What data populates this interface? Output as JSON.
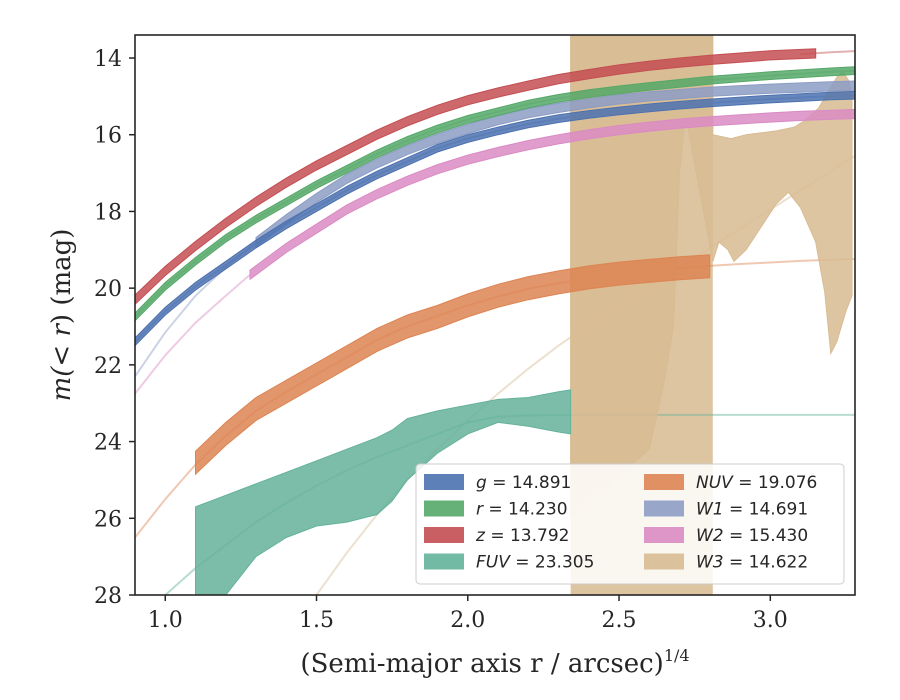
{
  "chart_data": {
    "type": "line",
    "title": "",
    "xlabel": "(Semi-major axis r / arcsec)",
    "xlabel_exponent": "1/4",
    "ylabel_pre": "m(",
    "ylabel_var": "< r",
    "ylabel_post": ") (mag)",
    "xlim": [
      0.9,
      3.28
    ],
    "ylim": [
      28,
      13.4
    ],
    "y_inverted": true,
    "grid": false,
    "legend_position": "lower-right",
    "xticks": [
      1.0,
      1.5,
      2.0,
      2.5,
      3.0
    ],
    "xtick_labels": [
      "1.0",
      "1.5",
      "2.0",
      "2.5",
      "3.0"
    ],
    "yticks": [
      14,
      16,
      18,
      20,
      22,
      24,
      26,
      28
    ],
    "ytick_labels": [
      "14",
      "16",
      "18",
      "20",
      "22",
      "24",
      "26",
      "28"
    ],
    "series": [
      {
        "id": "g",
        "legend_label": "g = 14.891",
        "color": "#4c72b0",
        "band": {
          "x": [
            0.9,
            1.0,
            1.1,
            1.2,
            1.3,
            1.4,
            1.5,
            1.6,
            1.7,
            1.8,
            1.9,
            2.0,
            2.1,
            2.2,
            2.3,
            2.4,
            2.5,
            2.6,
            2.7,
            2.8,
            2.9,
            3.0,
            3.1,
            3.2,
            3.28
          ],
          "y": [
            21.4,
            20.6,
            19.95,
            19.4,
            18.85,
            18.35,
            17.9,
            17.45,
            17.05,
            16.7,
            16.35,
            16.1,
            15.9,
            15.72,
            15.58,
            15.47,
            15.38,
            15.3,
            15.23,
            15.17,
            15.12,
            15.07,
            15.03,
            14.99,
            14.97
          ]
        },
        "band_width": 0.1,
        "model": {
          "x": [
            0.9,
            1.0,
            1.1,
            1.2,
            1.3,
            1.4,
            1.5,
            1.6,
            1.7,
            1.8,
            1.9,
            2.0,
            2.1,
            2.2,
            2.3,
            2.4,
            2.5,
            2.6,
            2.7,
            2.8,
            2.9,
            3.0,
            3.1,
            3.2,
            3.28
          ],
          "y": [
            21.4,
            20.6,
            19.95,
            19.4,
            18.85,
            18.35,
            17.9,
            17.45,
            17.05,
            16.7,
            16.35,
            16.1,
            15.9,
            15.72,
            15.58,
            15.47,
            15.38,
            15.3,
            15.23,
            15.17,
            15.12,
            15.07,
            15.03,
            14.99,
            14.97
          ]
        }
      },
      {
        "id": "r",
        "legend_label": "r = 14.230",
        "color": "#55a868",
        "band": {
          "x": [
            0.9,
            1.0,
            1.1,
            1.2,
            1.3,
            1.4,
            1.5,
            1.6,
            1.7,
            1.8,
            1.9,
            2.0,
            2.1,
            2.2,
            2.3,
            2.4,
            2.5,
            2.6,
            2.7,
            2.8,
            2.9,
            3.0,
            3.1,
            3.2,
            3.28
          ],
          "y": [
            20.75,
            19.95,
            19.3,
            18.7,
            18.2,
            17.75,
            17.3,
            16.9,
            16.5,
            16.15,
            15.85,
            15.6,
            15.4,
            15.2,
            15.05,
            14.93,
            14.83,
            14.74,
            14.66,
            14.58,
            14.52,
            14.46,
            14.41,
            14.36,
            14.33
          ]
        },
        "band_width": 0.1,
        "model": {
          "x": [
            0.9,
            1.0,
            1.1,
            1.2,
            1.3,
            1.4,
            1.5,
            1.6,
            1.7,
            1.8,
            1.9,
            2.0,
            2.1,
            2.2,
            2.3,
            2.4,
            2.5,
            2.6,
            2.7,
            2.8,
            2.9,
            3.0,
            3.1,
            3.2,
            3.28
          ],
          "y": [
            20.75,
            19.95,
            19.3,
            18.7,
            18.2,
            17.75,
            17.3,
            16.9,
            16.5,
            16.15,
            15.85,
            15.6,
            15.4,
            15.2,
            15.05,
            14.93,
            14.83,
            14.74,
            14.66,
            14.58,
            14.52,
            14.46,
            14.41,
            14.36,
            14.33
          ]
        }
      },
      {
        "id": "z",
        "legend_label": "z = 13.792",
        "color": "#c44e52",
        "band": {
          "x": [
            0.9,
            1.0,
            1.1,
            1.2,
            1.3,
            1.4,
            1.5,
            1.6,
            1.7,
            1.8,
            1.9,
            2.0,
            2.1,
            2.2,
            2.3,
            2.4,
            2.5,
            2.6,
            2.7,
            2.8,
            2.9,
            3.0,
            3.15
          ],
          "y": [
            20.3,
            19.55,
            18.9,
            18.3,
            17.75,
            17.25,
            16.8,
            16.4,
            16.0,
            15.65,
            15.35,
            15.1,
            14.9,
            14.72,
            14.55,
            14.42,
            14.3,
            14.2,
            14.12,
            14.05,
            13.99,
            13.93,
            13.88
          ]
        },
        "band_width": 0.12,
        "model": {
          "x": [
            3.1,
            3.2,
            3.28
          ],
          "y": [
            13.9,
            13.85,
            13.82
          ]
        }
      },
      {
        "id": "NUV",
        "legend_label": "NUV = 19.076",
        "color": "#dd8452",
        "band": {
          "x": [
            1.1,
            1.2,
            1.3,
            1.4,
            1.5,
            1.6,
            1.7,
            1.8,
            1.9,
            2.0,
            2.1,
            2.2,
            2.3,
            2.4,
            2.5,
            2.6,
            2.7,
            2.8
          ],
          "y": [
            24.55,
            23.8,
            23.15,
            22.7,
            22.25,
            21.8,
            21.35,
            21.0,
            20.75,
            20.45,
            20.2,
            20.0,
            19.85,
            19.72,
            19.62,
            19.55,
            19.48,
            19.43
          ]
        },
        "band_width": 0.3,
        "model": {
          "x": [
            0.9,
            1.0,
            1.1,
            1.2,
            1.3,
            1.4,
            1.5,
            1.6,
            1.7,
            1.8,
            1.9,
            2.0,
            2.1,
            2.2,
            2.3,
            2.4,
            2.5,
            2.6,
            2.7,
            2.8,
            2.9,
            3.0,
            3.1,
            3.2,
            3.28
          ],
          "y": [
            26.5,
            25.5,
            24.6,
            23.85,
            23.2,
            22.7,
            22.25,
            21.8,
            21.35,
            21.0,
            20.72,
            20.45,
            20.22,
            20.02,
            19.87,
            19.74,
            19.63,
            19.55,
            19.48,
            19.42,
            19.37,
            19.33,
            19.29,
            19.26,
            19.24
          ]
        }
      },
      {
        "id": "W1",
        "legend_label": "W1 = 14.691",
        "color": "#8c9cc4",
        "band": {
          "x": [
            1.3,
            1.4,
            1.5,
            1.6,
            1.7,
            1.8,
            1.9,
            2.0,
            2.1,
            2.2,
            2.3,
            2.4,
            2.5,
            2.6,
            2.7,
            2.8,
            2.9,
            3.0,
            3.1,
            3.2,
            3.28
          ],
          "y": [
            18.8,
            18.2,
            17.65,
            17.15,
            16.75,
            16.4,
            16.1,
            15.85,
            15.62,
            15.44,
            15.3,
            15.18,
            15.08,
            15.0,
            14.94,
            14.88,
            14.84,
            14.8,
            14.77,
            14.74,
            14.72
          ]
        },
        "band_width": 0.12,
        "model": {
          "x": [
            0.9,
            1.0,
            1.1,
            1.2,
            1.3
          ],
          "y": [
            22.3,
            21.15,
            20.2,
            19.45,
            18.8
          ]
        }
      },
      {
        "id": "W2",
        "legend_label": "W2 = 15.430",
        "color": "#da8bc3",
        "band": {
          "x": [
            1.28,
            1.4,
            1.5,
            1.6,
            1.7,
            1.8,
            1.9,
            2.0,
            2.1,
            2.2,
            2.3,
            2.4,
            2.5,
            2.6,
            2.7,
            2.8,
            2.9,
            3.0,
            3.1,
            3.2,
            3.28
          ],
          "y": [
            19.65,
            18.95,
            18.45,
            17.95,
            17.55,
            17.2,
            16.9,
            16.65,
            16.45,
            16.27,
            16.12,
            15.99,
            15.88,
            15.79,
            15.71,
            15.65,
            15.6,
            15.55,
            15.51,
            15.48,
            15.46
          ]
        },
        "band_width": 0.12,
        "model": {
          "x": [
            0.9,
            1.0,
            1.1,
            1.2,
            1.28
          ],
          "y": [
            22.75,
            21.75,
            20.9,
            20.2,
            19.65
          ]
        }
      },
      {
        "id": "FUV",
        "legend_label": "FUV = 23.305",
        "color": "#64b29a",
        "band_upper": {
          "x": [
            1.1,
            1.2,
            1.3,
            1.4,
            1.5,
            1.6,
            1.7,
            1.75,
            1.8,
            1.9,
            2.0,
            2.1,
            2.2,
            2.3,
            2.34
          ],
          "y": [
            25.7,
            25.4,
            25.1,
            24.8,
            24.5,
            24.2,
            23.9,
            23.7,
            23.4,
            23.2,
            23.05,
            22.9,
            22.85,
            22.7,
            22.65
          ]
        },
        "band_lower": {
          "x": [
            1.1,
            1.2,
            1.3,
            1.4,
            1.5,
            1.6,
            1.7,
            1.75,
            1.8,
            1.9,
            2.0,
            2.1,
            2.2,
            2.3,
            2.34
          ],
          "y": [
            28,
            28,
            27.0,
            26.5,
            26.2,
            26.1,
            25.9,
            25.55,
            25.0,
            24.3,
            23.8,
            23.5,
            23.6,
            23.75,
            23.8
          ]
        },
        "model": {
          "x": [
            1.0,
            1.1,
            1.2,
            1.3,
            1.4,
            1.5,
            1.6,
            1.7,
            1.8,
            1.9,
            2.0,
            2.1,
            2.2,
            2.3,
            2.4,
            2.5,
            2.6,
            2.7,
            2.8,
            2.9,
            3.0,
            3.1,
            3.2,
            3.28
          ],
          "y": [
            28.0,
            27.3,
            26.7,
            26.1,
            25.6,
            25.15,
            24.75,
            24.4,
            24.1,
            23.8,
            23.5,
            23.35,
            23.32,
            23.31,
            23.305,
            23.305,
            23.305,
            23.305,
            23.305,
            23.305,
            23.305,
            23.305,
            23.305,
            23.305
          ]
        }
      },
      {
        "id": "W3",
        "legend_label": "W3 = 14.622",
        "color": "#d8bb92",
        "span": [
          2.34,
          2.81
        ],
        "band_upper": {
          "x": [
            2.34,
            2.81,
            2.81,
            2.87,
            2.92,
            2.97,
            3.02,
            3.08,
            3.12,
            3.16,
            3.19,
            3.22,
            3.24,
            3.26,
            3.27
          ],
          "y": [
            13.4,
            13.4,
            16.0,
            16.1,
            16.0,
            15.95,
            15.9,
            15.8,
            15.6,
            15.3,
            14.9,
            14.5,
            14.35,
            14.6,
            15.0
          ]
        },
        "band_lower": {
          "x": [
            2.34,
            2.6,
            2.62,
            2.65,
            2.68,
            2.7,
            2.72,
            2.81,
            2.81,
            2.83,
            2.86,
            2.88,
            2.92,
            2.97,
            3.02,
            3.06,
            3.1,
            3.15,
            3.18,
            3.2,
            3.22,
            3.25,
            3.27
          ],
          "y": [
            26.0,
            24.2,
            23.5,
            22.4,
            21.0,
            17.0,
            15.5,
            19.3,
            19.3,
            18.8,
            19.0,
            19.3,
            19.0,
            18.4,
            17.8,
            17.5,
            17.9,
            18.8,
            20.1,
            21.7,
            21.4,
            20.6,
            20.2
          ]
        },
        "model": {
          "x": [
            1.5,
            1.6,
            1.7,
            1.8,
            1.9,
            2.0,
            2.1,
            2.2,
            2.3,
            2.4,
            2.5,
            2.6,
            2.7,
            2.8,
            2.9,
            3.0,
            3.1,
            3.2,
            3.28
          ],
          "y": [
            28.0,
            26.9,
            25.9,
            25.0,
            24.2,
            23.45,
            22.75,
            22.1,
            21.5,
            20.95,
            20.45,
            19.95,
            19.45,
            18.95,
            18.45,
            17.95,
            17.45,
            16.95,
            16.55
          ]
        }
      }
    ]
  }
}
